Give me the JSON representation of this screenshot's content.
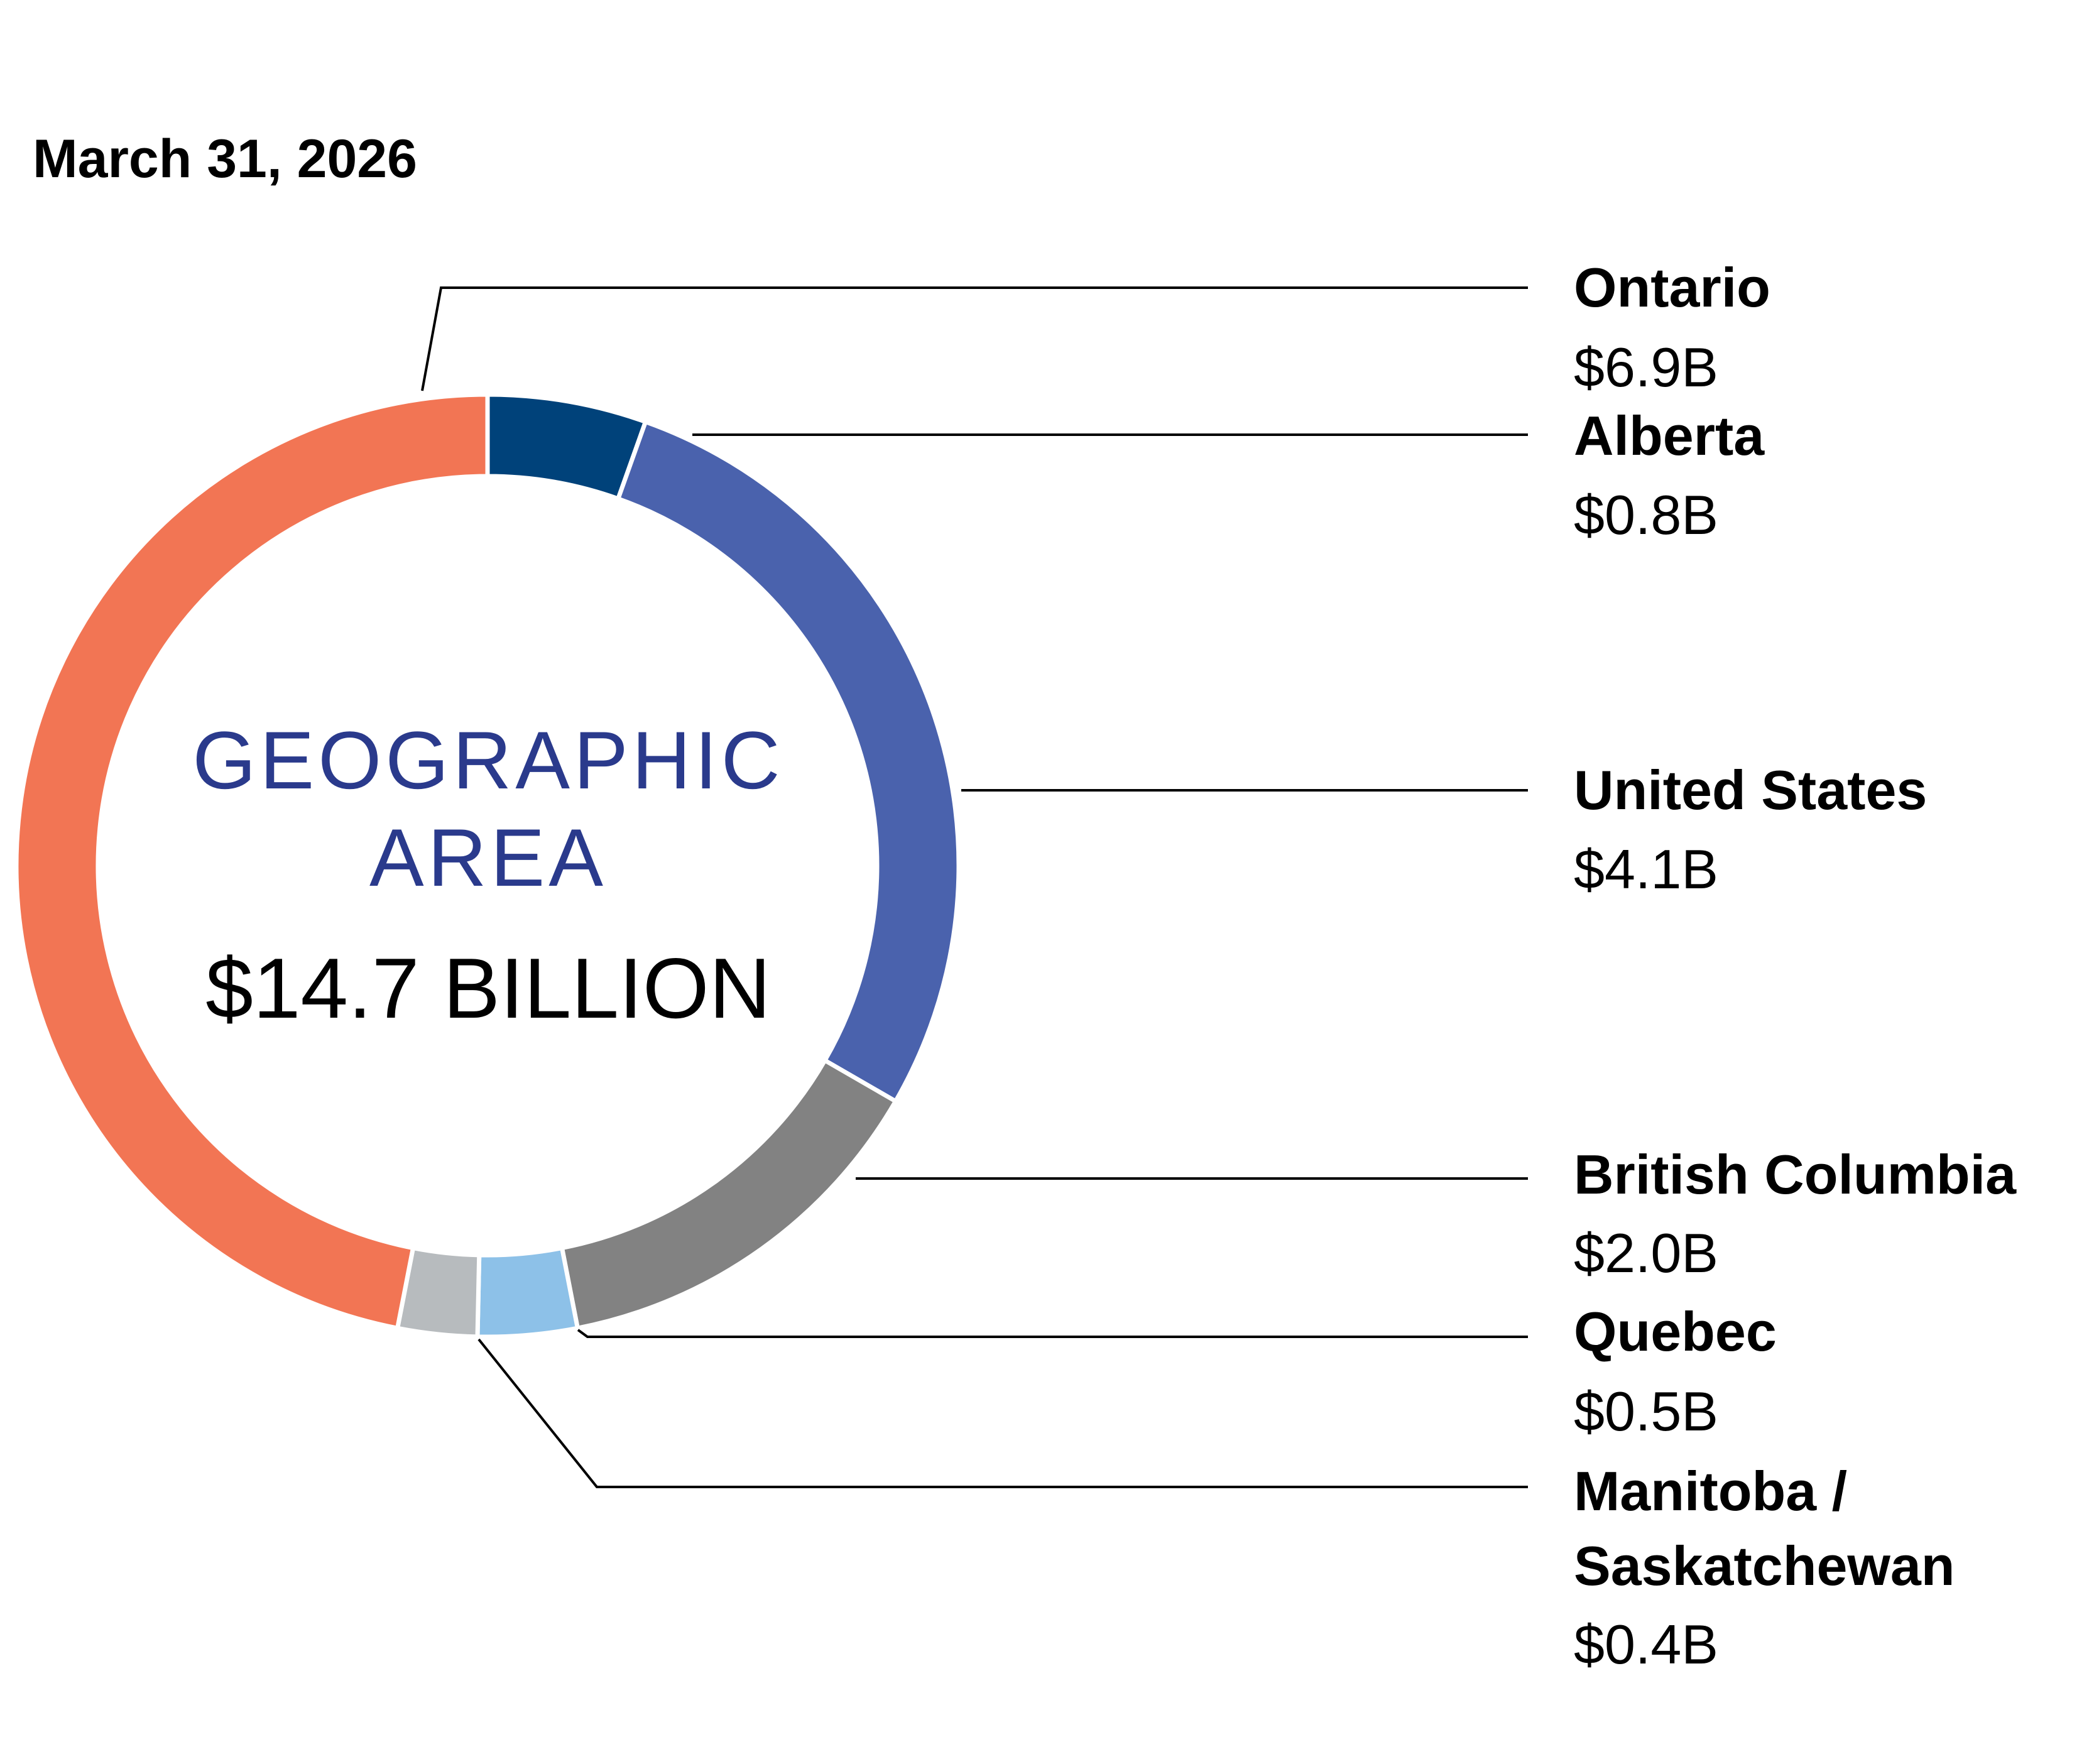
{
  "chart_data": {
    "type": "pie",
    "date": "March 31, 2026",
    "center_title_lines": [
      "GEOGRAPHIC",
      "AREA"
    ],
    "center_total": "$14.7 BILLION",
    "title_color": "#2a3a8c",
    "slices": [
      {
        "name": "Alberta",
        "value": 0.8,
        "value_label": "$0.8B",
        "color": "#00427a"
      },
      {
        "name": "United States",
        "value": 4.1,
        "value_label": "$4.1B",
        "color": "#4a62ad"
      },
      {
        "name": "British Columbia",
        "value": 2.0,
        "value_label": "$2.0B",
        "color": "#828282"
      },
      {
        "name": "Quebec",
        "value": 0.5,
        "value_label": "$0.5B",
        "color": "#8dc1e8"
      },
      {
        "name": "Manitoba / Saskatchewan",
        "name_lines": [
          "Manitoba /",
          "Saskatchewan"
        ],
        "value": 0.4,
        "value_label": "$0.4B",
        "color": "#b7bbbe"
      },
      {
        "name": "Ontario",
        "value": 6.9,
        "value_label": "$6.9B",
        "color": "#f27554"
      }
    ]
  }
}
